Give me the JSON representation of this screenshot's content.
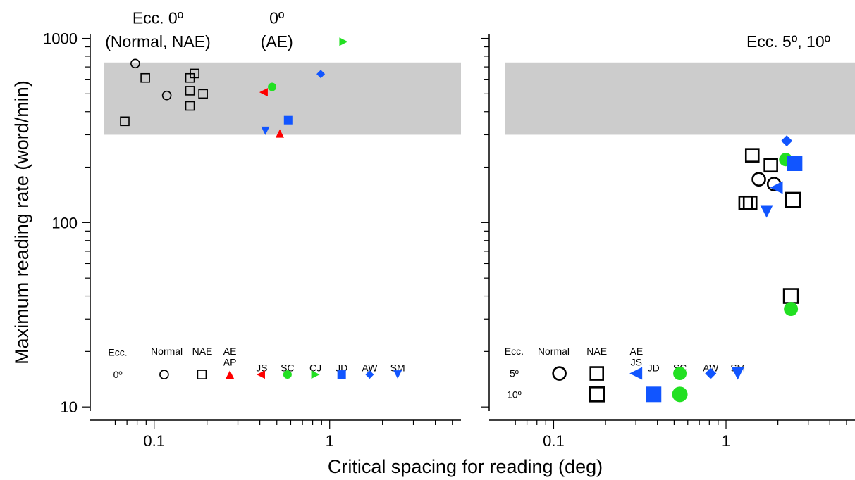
{
  "chart_data": {
    "type": "scatter",
    "ylabel": "Maximum reading rate (word/min)",
    "xlabel": "Critical spacing for reading (deg)",
    "y_scale": "log",
    "x_scale": "log",
    "ylim": [
      9.5,
      1050
    ],
    "y_ticks": [
      {
        "value": 10,
        "label": "10"
      },
      {
        "value": 100,
        "label": "100"
      },
      {
        "value": 1000,
        "label": "1000"
      }
    ],
    "band": {
      "y_min": 300,
      "y_max": 740
    },
    "colors": {
      "red": "#ff0000",
      "green": "#22e022",
      "blue": "#1155ff",
      "black": "#000000"
    },
    "panels": [
      {
        "id": "left",
        "xlim": [
          0.052,
          5.6
        ],
        "x_ticks": [
          {
            "value": 0.1,
            "label": "0.1"
          },
          {
            "value": 1,
            "label": "1"
          }
        ],
        "annotations": [
          {
            "text": "Ecc. 0º",
            "x": 0.105,
            "y": 1290
          },
          {
            "text": "(Normal, NAE)",
            "x": 0.105,
            "y": 960
          },
          {
            "text": "0º",
            "x": 0.5,
            "y": 1290
          },
          {
            "text": "(AE)",
            "x": 0.5,
            "y": 960
          }
        ],
        "points": [
          {
            "x": 0.078,
            "y": 730,
            "marker": "circle",
            "color": "black",
            "filled": false,
            "size": 12
          },
          {
            "x": 0.118,
            "y": 490,
            "marker": "circle",
            "color": "black",
            "filled": false,
            "size": 12
          },
          {
            "x": 0.068,
            "y": 355,
            "marker": "square",
            "color": "black",
            "filled": false,
            "size": 12
          },
          {
            "x": 0.089,
            "y": 610,
            "marker": "square",
            "color": "black",
            "filled": false,
            "size": 12
          },
          {
            "x": 0.16,
            "y": 610,
            "marker": "square",
            "color": "black",
            "filled": false,
            "size": 12
          },
          {
            "x": 0.17,
            "y": 645,
            "marker": "square",
            "color": "black",
            "filled": false,
            "size": 12
          },
          {
            "x": 0.16,
            "y": 520,
            "marker": "square",
            "color": "black",
            "filled": false,
            "size": 12
          },
          {
            "x": 0.19,
            "y": 500,
            "marker": "square",
            "color": "black",
            "filled": false,
            "size": 12
          },
          {
            "x": 0.16,
            "y": 430,
            "marker": "square",
            "color": "black",
            "filled": false,
            "size": 12
          },
          {
            "x": 0.42,
            "y": 510,
            "marker": "triangle-left",
            "color": "red",
            "filled": true,
            "size": 12
          },
          {
            "x": 0.52,
            "y": 305,
            "marker": "triangle-up",
            "color": "red",
            "filled": true,
            "size": 12
          },
          {
            "x": 0.47,
            "y": 545,
            "marker": "circle",
            "color": "green",
            "filled": true,
            "size": 12
          },
          {
            "x": 1.2,
            "y": 960,
            "marker": "triangle-right",
            "color": "green",
            "filled": true,
            "size": 12
          },
          {
            "x": 0.43,
            "y": 315,
            "marker": "triangle-down",
            "color": "blue",
            "filled": true,
            "size": 12
          },
          {
            "x": 0.58,
            "y": 360,
            "marker": "square",
            "color": "blue",
            "filled": true,
            "size": 12
          },
          {
            "x": 0.89,
            "y": 640,
            "marker": "diamond",
            "color": "blue",
            "filled": true,
            "size": 12
          }
        ],
        "legend": {
          "header": [
            {
              "text": "Ecc.",
              "x": 0.062,
              "y": 19.8
            },
            {
              "text": "Normal",
              "x": 0.118,
              "y": 20.1
            },
            {
              "text": "NAE",
              "x": 0.188,
              "y": 20.1
            },
            {
              "text": "AE",
              "x": 0.27,
              "y": 20.1
            },
            {
              "text": "AP",
              "x": 0.27,
              "y": 17.5
            },
            {
              "text": "JS",
              "x": 0.41,
              "y": 16.3
            },
            {
              "text": "SC",
              "x": 0.575,
              "y": 16.3
            },
            {
              "text": "CJ",
              "x": 0.83,
              "y": 16.3
            },
            {
              "text": "JD",
              "x": 1.17,
              "y": 16.3
            },
            {
              "text": "AW",
              "x": 1.69,
              "y": 16.3
            },
            {
              "text": "SM",
              "x": 2.44,
              "y": 16.3
            }
          ],
          "row_labels": [
            {
              "text": "0º",
              "x": 0.062,
              "y": 15.0
            }
          ],
          "markers": [
            {
              "x": 0.114,
              "y": 15.0,
              "marker": "circle",
              "color": "black",
              "filled": false,
              "size": 12
            },
            {
              "x": 0.187,
              "y": 15.0,
              "marker": "square",
              "color": "black",
              "filled": false,
              "size": 12
            },
            {
              "x": 0.27,
              "y": 15.0,
              "marker": "triangle-up",
              "color": "red",
              "filled": true,
              "size": 12
            },
            {
              "x": 0.405,
              "y": 15.0,
              "marker": "triangle-left",
              "color": "red",
              "filled": true,
              "size": 12
            },
            {
              "x": 0.575,
              "y": 15.0,
              "marker": "circle",
              "color": "green",
              "filled": true,
              "size": 12
            },
            {
              "x": 0.83,
              "y": 15.0,
              "marker": "triangle-right",
              "color": "green",
              "filled": true,
              "size": 12
            },
            {
              "x": 1.17,
              "y": 15.0,
              "marker": "square",
              "color": "blue",
              "filled": true,
              "size": 12
            },
            {
              "x": 1.69,
              "y": 15.0,
              "marker": "diamond",
              "color": "blue",
              "filled": true,
              "size": 12
            },
            {
              "x": 2.44,
              "y": 15.0,
              "marker": "triangle-down",
              "color": "blue",
              "filled": true,
              "size": 12
            }
          ]
        }
      },
      {
        "id": "right",
        "xlim": [
          0.052,
          5.6
        ],
        "x_ticks": [
          {
            "value": 0.1,
            "label": "0.1"
          },
          {
            "value": 1,
            "label": "1"
          }
        ],
        "annotations": [
          {
            "text": "Ecc. 5º, 10º",
            "x": 2.3,
            "y": 960
          }
        ],
        "points": [
          {
            "x": 1.55,
            "y": 172,
            "marker": "circle",
            "color": "black",
            "filled": false,
            "size": 18
          },
          {
            "x": 1.9,
            "y": 162,
            "marker": "circle",
            "color": "black",
            "filled": false,
            "size": 18
          },
          {
            "x": 1.42,
            "y": 232,
            "marker": "square",
            "color": "black",
            "filled": false,
            "size": 18
          },
          {
            "x": 1.82,
            "y": 205,
            "marker": "square",
            "color": "black",
            "filled": false,
            "size": 18
          },
          {
            "x": 1.3,
            "y": 128,
            "marker": "square",
            "color": "black",
            "filled": false,
            "size": 18
          },
          {
            "x": 1.38,
            "y": 128,
            "marker": "square",
            "color": "black",
            "filled": false,
            "size": 18
          },
          {
            "x": 2.45,
            "y": 133,
            "marker": "square",
            "color": "black",
            "filled": false,
            "size": 20
          },
          {
            "x": 2.38,
            "y": 40,
            "marker": "square",
            "color": "black",
            "filled": false,
            "size": 20
          },
          {
            "x": 1.96,
            "y": 155,
            "marker": "triangle-left",
            "color": "blue",
            "filled": true,
            "size": 18
          },
          {
            "x": 2.22,
            "y": 220,
            "marker": "circle",
            "color": "green",
            "filled": true,
            "size": 19
          },
          {
            "x": 2.38,
            "y": 34,
            "marker": "circle",
            "color": "green",
            "filled": true,
            "size": 20
          },
          {
            "x": 2.25,
            "y": 278,
            "marker": "diamond",
            "color": "blue",
            "filled": true,
            "size": 16
          },
          {
            "x": 2.5,
            "y": 210,
            "marker": "square",
            "color": "blue",
            "filled": true,
            "size": 22
          },
          {
            "x": 1.72,
            "y": 115,
            "marker": "triangle-down",
            "color": "blue",
            "filled": true,
            "size": 18
          }
        ],
        "legend": {
          "header": [
            {
              "text": "Ecc.",
              "x": 0.059,
              "y": 20.1
            },
            {
              "text": "Normal",
              "x": 0.1,
              "y": 20.1
            },
            {
              "text": "NAE",
              "x": 0.178,
              "y": 20.1
            },
            {
              "text": "AE",
              "x": 0.302,
              "y": 20.1
            },
            {
              "text": "JS",
              "x": 0.302,
              "y": 17.5
            },
            {
              "text": "JD",
              "x": 0.38,
              "y": 16.3
            },
            {
              "text": "SC",
              "x": 0.54,
              "y": 16.3
            },
            {
              "text": "AW",
              "x": 0.815,
              "y": 16.3
            },
            {
              "text": "SM",
              "x": 1.17,
              "y": 16.3
            }
          ],
          "row_labels": [
            {
              "text": "5º",
              "x": 0.059,
              "y": 15.2
            },
            {
              "text": "10º",
              "x": 0.059,
              "y": 11.7
            }
          ],
          "markers": [
            {
              "x": 0.108,
              "y": 15.2,
              "marker": "circle",
              "color": "black",
              "filled": false,
              "size": 18
            },
            {
              "x": 0.178,
              "y": 15.2,
              "marker": "square",
              "color": "black",
              "filled": false,
              "size": 18
            },
            {
              "x": 0.178,
              "y": 11.7,
              "marker": "square",
              "color": "black",
              "filled": false,
              "size": 20
            },
            {
              "x": 0.3,
              "y": 15.2,
              "marker": "triangle-left",
              "color": "blue",
              "filled": true,
              "size": 18
            },
            {
              "x": 0.38,
              "y": 11.7,
              "marker": "square",
              "color": "blue",
              "filled": true,
              "size": 22
            },
            {
              "x": 0.54,
              "y": 15.2,
              "marker": "circle",
              "color": "green",
              "filled": true,
              "size": 19
            },
            {
              "x": 0.54,
              "y": 11.7,
              "marker": "circle",
              "color": "green",
              "filled": true,
              "size": 22
            },
            {
              "x": 0.815,
              "y": 15.2,
              "marker": "diamond",
              "color": "blue",
              "filled": true,
              "size": 16
            },
            {
              "x": 1.17,
              "y": 15.2,
              "marker": "triangle-down",
              "color": "blue",
              "filled": true,
              "size": 18
            }
          ]
        }
      }
    ]
  }
}
